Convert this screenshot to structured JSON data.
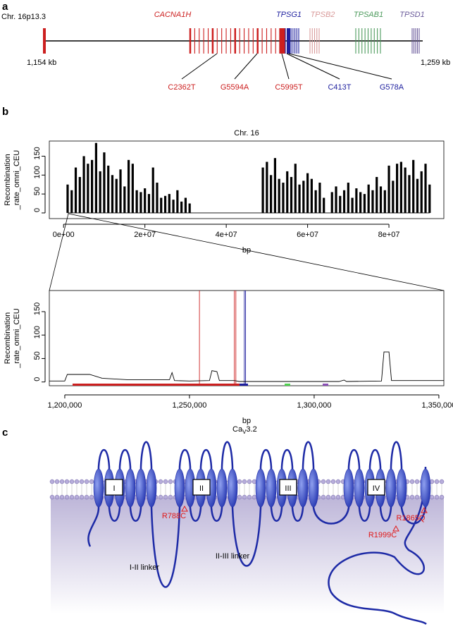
{
  "panels": {
    "a": {
      "letter": "a",
      "region": "Chr. 16p13.3",
      "start": "1,154 kb",
      "end": "1,259 kb",
      "genes": [
        {
          "name": "CACNA1H",
          "color": "#cc1f1f"
        },
        {
          "name": "TPSG1",
          "color": "#1d1f9e"
        },
        {
          "name": "TPSB2",
          "color": "#d89a9a"
        },
        {
          "name": "TPSAB1",
          "color": "#4c9a5c"
        },
        {
          "name": "TPSD1",
          "color": "#6a5a9a"
        }
      ],
      "variants": [
        {
          "name": "C2362T",
          "color": "#cc1f1f"
        },
        {
          "name": "G5594A",
          "color": "#cc1f1f"
        },
        {
          "name": "C5995T",
          "color": "#cc1f1f"
        },
        {
          "name": "C413T",
          "color": "#1d1f9e"
        },
        {
          "name": "G578A",
          "color": "#1d1f9e"
        }
      ]
    },
    "b": {
      "letter": "b",
      "top": {
        "type": "bar",
        "title": "Chr. 16",
        "x_label": "bp",
        "y_label": [
          "Recombination",
          "_rate_omni_CEU"
        ],
        "ylim": [
          -15,
          190
        ],
        "yticks": [
          0,
          50,
          100,
          150
        ],
        "xlim": [
          -3500000,
          93500000
        ],
        "xticks": [
          {
            "value": 0,
            "label": "0e+00"
          },
          {
            "value": 20000000,
            "label": "2e+07"
          },
          {
            "value": 40000000,
            "label": "4e+07"
          },
          {
            "value": 60000000,
            "label": "6e+07"
          },
          {
            "value": 80000000,
            "label": "8e+07"
          }
        ],
        "color": "#000000",
        "x": [
          1000000,
          2000000,
          3000000,
          4000000,
          5000000,
          6000000,
          7000000,
          8000000,
          9000000,
          10000000,
          11000000,
          12000000,
          13000000,
          14000000,
          15000000,
          16000000,
          17000000,
          18000000,
          19000000,
          20000000,
          21000000,
          22000000,
          23000000,
          24000000,
          25000000,
          26000000,
          27000000,
          28000000,
          29000000,
          30000000,
          31000000,
          49000000,
          50000000,
          51000000,
          52000000,
          53000000,
          54000000,
          55000000,
          56000000,
          57000000,
          58000000,
          59000000,
          60000000,
          61000000,
          62000000,
          63000000,
          64000000,
          66000000,
          67000000,
          68000000,
          69000000,
          70000000,
          71000000,
          72000000,
          73000000,
          74000000,
          75000000,
          76000000,
          77000000,
          78000000,
          79000000,
          80000000,
          81000000,
          82000000,
          83000000,
          84000000,
          85000000,
          86000000,
          87000000,
          88000000,
          89000000,
          90000000
        ],
        "values": [
          75,
          60,
          120,
          95,
          150,
          130,
          140,
          185,
          110,
          160,
          125,
          100,
          90,
          115,
          70,
          140,
          130,
          60,
          55,
          65,
          50,
          120,
          80,
          40,
          45,
          50,
          35,
          60,
          30,
          40,
          25,
          120,
          135,
          100,
          145,
          90,
          80,
          110,
          95,
          130,
          75,
          85,
          105,
          90,
          60,
          80,
          40,
          55,
          70,
          45,
          60,
          80,
          40,
          65,
          55,
          50,
          75,
          60,
          95,
          70,
          60,
          125,
          85,
          130,
          135,
          120,
          100,
          140,
          90,
          110,
          130,
          75
        ]
      },
      "bottom": {
        "type": "line",
        "x_label": "bp",
        "y_label": [
          "Recombination",
          "_rate_omni_CEU"
        ],
        "ylim": [
          -8,
          195
        ],
        "yticks": [
          0,
          50,
          100,
          150
        ],
        "xlim": [
          1193800,
          1352000
        ],
        "xticks": [
          {
            "value": 1200000,
            "label": "1,200,000"
          },
          {
            "value": 1250000,
            "label": "1,250,000"
          },
          {
            "value": 1300000,
            "label": "1,300,000"
          },
          {
            "value": 1350000,
            "label": "1,350,000"
          }
        ],
        "color": "#000000",
        "x": [
          1193800,
          1200000,
          1201000,
          1210000,
          1215000,
          1225000,
          1242000,
          1243000,
          1244000,
          1250000,
          1258000,
          1259000,
          1261000,
          1262000,
          1268000,
          1270000,
          1310000,
          1312000,
          1313000,
          1327000,
          1328000,
          1330000,
          1331000,
          1352000
        ],
        "values": [
          2,
          2,
          16,
          16,
          8,
          5,
          5,
          20,
          3,
          2,
          3,
          24,
          22,
          3,
          3,
          1,
          1,
          4,
          1,
          2,
          64,
          64,
          3,
          3
        ],
        "snp_lines": [
          {
            "x": 1254000,
            "color": "#cc1f1f"
          },
          {
            "x": 1268000,
            "color": "#cc1f1f"
          },
          {
            "x": 1268600,
            "color": "#cc1f1f"
          },
          {
            "x": 1272000,
            "color": "#1d1f9e"
          },
          {
            "x": 1272500,
            "color": "#1d1f9e"
          }
        ]
      }
    },
    "c": {
      "letter": "c",
      "protein": {
        "main": "Ca",
        "sub": "V",
        "rest": "3.2"
      },
      "domains": [
        "I",
        "II",
        "III",
        "IV"
      ],
      "mutations": [
        "R788C",
        "R1999C",
        "R1865Q"
      ],
      "linkers": [
        "I-II linker",
        "II-III linker"
      ]
    }
  }
}
